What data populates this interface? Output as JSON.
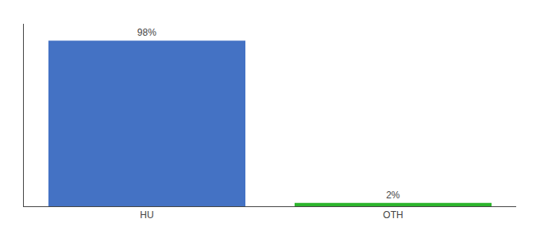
{
  "chart_data": {
    "type": "bar",
    "categories": [
      "HU",
      "OTH"
    ],
    "values": [
      98,
      2
    ],
    "value_labels": [
      "98%",
      "2%"
    ],
    "colors": [
      "#4472c4",
      "#2db52d"
    ],
    "ylim": [
      0,
      108
    ],
    "data_labels": true,
    "tick_labels": "x",
    "grid": false
  }
}
